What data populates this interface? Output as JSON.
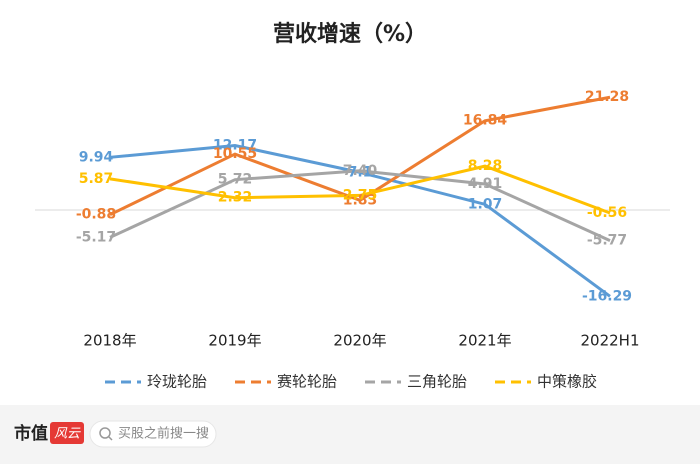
{
  "chart_data": {
    "type": "line",
    "title": "营收增速（%）",
    "categories": [
      "2018年",
      "2019年",
      "2020年",
      "2021年",
      "2022H1"
    ],
    "series": [
      {
        "name": "玲珑轮胎",
        "color": "#5b9bd5",
        "values": [
          9.94,
          12.17,
          7.1,
          1.07,
          -16.29
        ]
      },
      {
        "name": "赛轮轮胎",
        "color": "#ed7d31",
        "values": [
          -0.88,
          10.55,
          1.83,
          16.84,
          21.28
        ]
      },
      {
        "name": "三角轮胎",
        "color": "#a5a5a5",
        "values": [
          -5.17,
          5.72,
          7.4,
          4.91,
          -5.77
        ],
        "value_labels": [
          "-5.17",
          "5.72",
          "7.40",
          "4.91",
          "-5.77"
        ]
      },
      {
        "name": "中策橡胶",
        "color": "#ffc000",
        "values": [
          5.87,
          2.32,
          2.75,
          8.28,
          -0.56
        ]
      }
    ],
    "ylim": [
      -20,
      25
    ]
  },
  "footer": {
    "brand": "市值",
    "logo": "风云",
    "search": "买股之前搜一搜"
  }
}
